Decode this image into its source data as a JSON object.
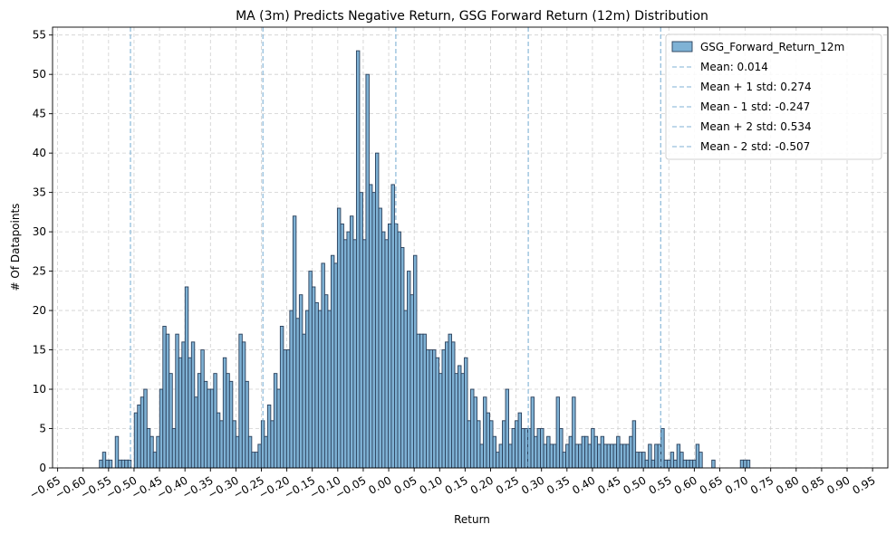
{
  "chart_data": {
    "type": "bar",
    "title": "MA (3m) Predicts Negative Return, GSG Forward Return (12m) Distribution",
    "xlabel": "Return",
    "ylabel": "# Of Datapoints",
    "xlim": [
      -0.66,
      0.98
    ],
    "ylim": [
      0,
      56
    ],
    "x_ticks": [
      -0.65,
      -0.6,
      -0.55,
      -0.5,
      -0.45,
      -0.4,
      -0.35,
      -0.3,
      -0.25,
      -0.2,
      -0.15,
      -0.1,
      -0.05,
      0.0,
      0.05,
      0.1,
      0.15,
      0.2,
      0.25,
      0.3,
      0.35,
      0.4,
      0.45,
      0.5,
      0.55,
      0.6,
      0.65,
      0.7,
      0.75,
      0.8,
      0.85,
      0.9,
      0.95
    ],
    "x_tick_labels": [
      "−0.65",
      "−0.60",
      "−0.55",
      "−0.50",
      "−0.45",
      "−0.40",
      "−0.35",
      "−0.30",
      "−0.25",
      "−0.20",
      "−0.15",
      "−0.10",
      "−0.05",
      "0.00",
      "0.05",
      "0.10",
      "0.15",
      "0.20",
      "0.25",
      "0.30",
      "0.35",
      "0.40",
      "0.45",
      "0.50",
      "0.55",
      "0.60",
      "0.65",
      "0.70",
      "0.75",
      "0.80",
      "0.85",
      "0.90",
      "0.95"
    ],
    "y_ticks": [
      0,
      5,
      10,
      15,
      20,
      25,
      30,
      35,
      40,
      45,
      50,
      55
    ],
    "grid": true,
    "legend_position": "top-right",
    "bin_start": -0.568,
    "bin_width": 0.00623,
    "counts": [
      1,
      2,
      1,
      1,
      0,
      4,
      1,
      1,
      1,
      1,
      0,
      7,
      8,
      9,
      10,
      5,
      4,
      2,
      4,
      10,
      18,
      17,
      12,
      5,
      17,
      14,
      16,
      23,
      14,
      16,
      9,
      12,
      15,
      11,
      10,
      10,
      12,
      7,
      6,
      14,
      12,
      11,
      6,
      4,
      17,
      16,
      11,
      4,
      2,
      2,
      3,
      6,
      4,
      8,
      6,
      12,
      10,
      18,
      15,
      15,
      20,
      32,
      19,
      22,
      17,
      20,
      25,
      23,
      21,
      20,
      26,
      22,
      20,
      27,
      26,
      33,
      31,
      29,
      30,
      32,
      29,
      53,
      35,
      29,
      50,
      36,
      35,
      40,
      33,
      30,
      29,
      31,
      36,
      31,
      30,
      28,
      20,
      25,
      22,
      27,
      17,
      17,
      17,
      15,
      15,
      15,
      14,
      12,
      15,
      16,
      17,
      16,
      12,
      13,
      12,
      14,
      6,
      10,
      9,
      6,
      3,
      9,
      7,
      6,
      4,
      2,
      3,
      6,
      10,
      3,
      5,
      6,
      7,
      5,
      5,
      5,
      9,
      4,
      5,
      5,
      3,
      4,
      3,
      3,
      9,
      5,
      2,
      3,
      4,
      9,
      3,
      3,
      4,
      4,
      3,
      5,
      4,
      3,
      4,
      3,
      3,
      3,
      3,
      4,
      3,
      3,
      3,
      4,
      6,
      2,
      2,
      2,
      1,
      3,
      1,
      3,
      3,
      5,
      1,
      1,
      2,
      1,
      3,
      2,
      1,
      1,
      1,
      1,
      3,
      2,
      0,
      0,
      0,
      1,
      0,
      0,
      0,
      0,
      0,
      0,
      0,
      0,
      1,
      1,
      1
    ],
    "series": [
      {
        "name": "GSG_Forward_Return_12m",
        "color": "#7fb2d5",
        "edge_color": "#2a3f5a"
      }
    ],
    "reference_lines": [
      {
        "label": "Mean: 0.014",
        "x": 0.014
      },
      {
        "label": "Mean + 1 std: 0.274",
        "x": 0.274
      },
      {
        "label": "Mean - 1 std: -0.247",
        "x": -0.247
      },
      {
        "label": "Mean + 2 std: 0.534",
        "x": 0.534
      },
      {
        "label": "Mean - 2 std: -0.507",
        "x": -0.507
      }
    ],
    "reference_line_color": "#7fb2d5"
  }
}
